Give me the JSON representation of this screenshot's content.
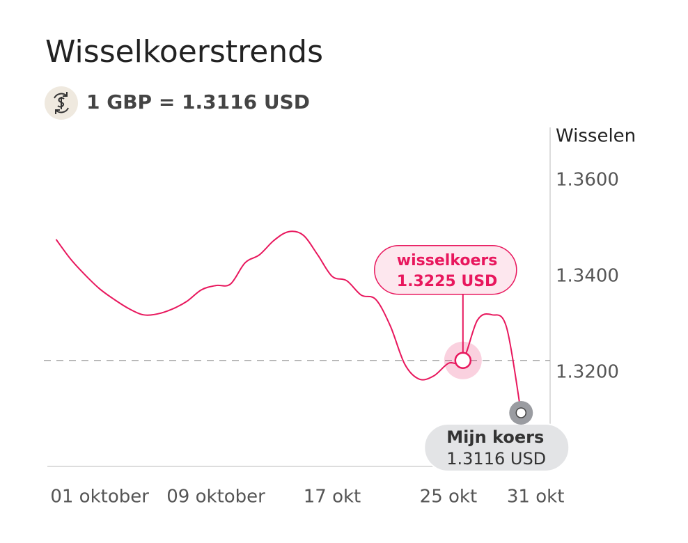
{
  "chart_data": {
    "type": "line",
    "title": "Wisselkoerstrends",
    "subtitle": "1 GBP = 1.3116 USD",
    "y_axis_label": "Wisselen",
    "color": "#e8175d",
    "x": [
      -2,
      -1,
      0,
      1,
      2,
      3,
      4,
      5,
      6,
      7,
      8,
      9,
      10,
      11,
      12,
      13,
      14,
      15,
      16,
      17,
      18,
      19,
      20,
      21,
      22,
      23,
      24,
      25,
      26,
      27,
      28,
      29,
      30
    ],
    "values": [
      1.3477,
      1.3436,
      1.3403,
      1.3374,
      1.3352,
      1.3333,
      1.332,
      1.3322,
      1.3332,
      1.3348,
      1.3372,
      1.3381,
      1.3384,
      1.3428,
      1.3445,
      1.3475,
      1.3493,
      1.3486,
      1.3445,
      1.34,
      1.3391,
      1.3361,
      1.3352,
      1.3297,
      1.3217,
      1.3186,
      1.3193,
      1.3219,
      1.3225,
      1.3309,
      1.332,
      1.3294,
      1.3116
    ],
    "xlim": [
      -2.6,
      32
    ],
    "xticks": [
      {
        "value": 1,
        "label": "01 oktober"
      },
      {
        "value": 9,
        "label": "09 oktober"
      },
      {
        "value": 17,
        "label": "17 okt"
      },
      {
        "value": 25,
        "label": "25 okt"
      },
      {
        "value": 31,
        "label": "31 okt"
      }
    ],
    "ylim": [
      1.3,
      1.37
    ],
    "yticks": [
      {
        "value": 1.36,
        "label": "1.3600"
      },
      {
        "value": 1.34,
        "label": "1.3400"
      },
      {
        "value": 1.32,
        "label": "1.3200"
      }
    ],
    "annotations": [
      {
        "label": "wisselkoers",
        "x": 26,
        "value": 1.3225,
        "value_label": "1.3225 USD"
      },
      {
        "label": "Mijn koers",
        "x": 30,
        "value": 1.3116,
        "value_label": "1.3116 USD"
      }
    ]
  }
}
